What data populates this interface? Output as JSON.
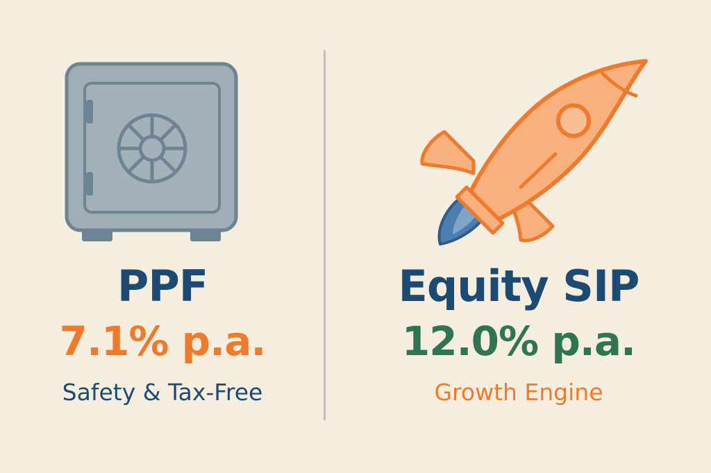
{
  "colors": {
    "background": "#F5EEDF",
    "navy": "#1C4A73",
    "orange": "#EF7A2B",
    "green": "#2F7553",
    "safe_gray": "#9EADB6",
    "safe_stroke": "#6D8593",
    "rocket_fill": "#F7B07E",
    "flame_blue": "#4B7FB0",
    "divider": "#BFC0BC"
  },
  "left": {
    "icon": "safe-icon",
    "title": "PPF",
    "rate": "7.1% p.a.",
    "subtitle": "Safety & Tax-Free"
  },
  "right": {
    "icon": "rocket-icon",
    "title": "Equity SIP",
    "rate": "12.0% p.a.",
    "subtitle": "Growth Engine"
  }
}
